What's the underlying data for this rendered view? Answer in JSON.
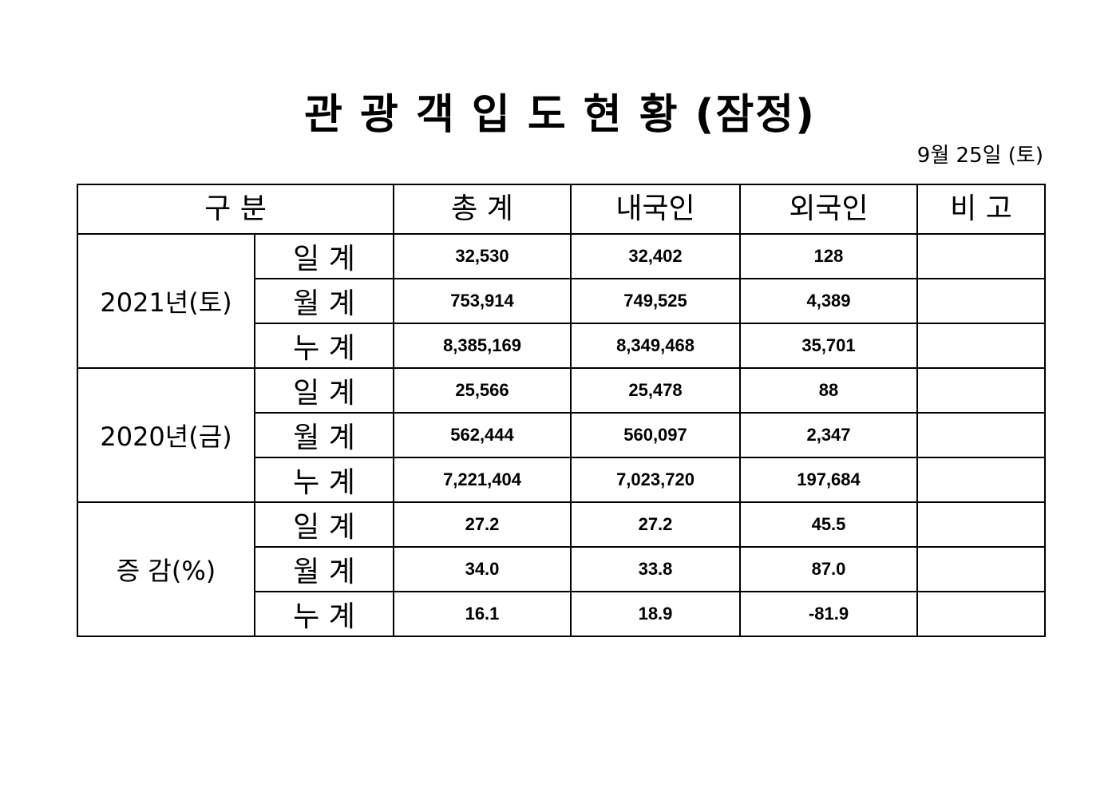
{
  "title": "관 광 객 입 도 현 황 (잠정)",
  "date": "9월 25일 (토)",
  "headers": [
    "구 분",
    "총 계",
    "내국인",
    "외국인",
    "비 고"
  ],
  "groups": [
    {
      "label": "2021년(토)",
      "rows": [
        {
          "label": "일 계",
          "total": "32,530",
          "domestic": "32,402",
          "foreign": "128",
          "note": ""
        },
        {
          "label": "월 계",
          "total": "753,914",
          "domestic": "749,525",
          "foreign": "4,389",
          "note": ""
        },
        {
          "label": "누 계",
          "total": "8,385,169",
          "domestic": "8,349,468",
          "foreign": "35,701",
          "note": ""
        }
      ]
    },
    {
      "label": "2020년(금)",
      "rows": [
        {
          "label": "일 계",
          "total": "25,566",
          "domestic": "25,478",
          "foreign": "88",
          "note": ""
        },
        {
          "label": "월 계",
          "total": "562,444",
          "domestic": "560,097",
          "foreign": "2,347",
          "note": ""
        },
        {
          "label": "누 계",
          "total": "7,221,404",
          "domestic": "7,023,720",
          "foreign": "197,684",
          "note": ""
        }
      ]
    },
    {
      "label": "증 감(%)",
      "rows": [
        {
          "label": "일 계",
          "total": "27.2",
          "domestic": "27.2",
          "foreign": "45.5",
          "note": ""
        },
        {
          "label": "월 계",
          "total": "34.0",
          "domestic": "33.8",
          "foreign": "87.0",
          "note": ""
        },
        {
          "label": "누 계",
          "total": "16.1",
          "domestic": "18.9",
          "foreign": "-81.9",
          "note": ""
        }
      ]
    }
  ]
}
